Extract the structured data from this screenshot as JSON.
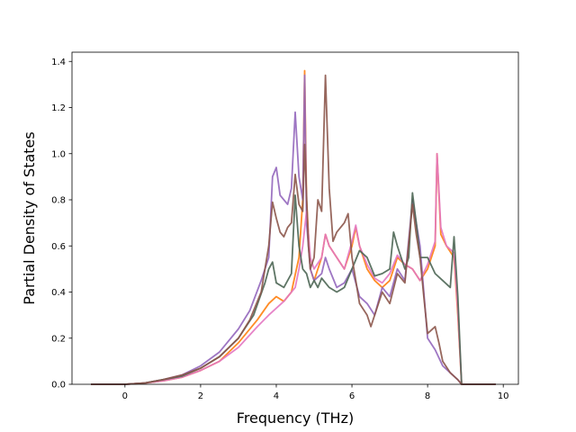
{
  "chart_data": {
    "type": "line",
    "title": "",
    "xlabel": "Frequency (THz)",
    "ylabel": "Partial Density of States",
    "xlim": [
      -1.4,
      10.4
    ],
    "ylim": [
      0.0,
      1.44
    ],
    "xticks": [
      0,
      2,
      4,
      6,
      8,
      10
    ],
    "yticks": [
      0.0,
      0.2,
      0.4,
      0.6,
      0.8,
      1.0,
      1.2,
      1.4
    ],
    "xtick_labels": [
      "0",
      "2",
      "4",
      "6",
      "8",
      "10"
    ],
    "ytick_labels": [
      "0.0",
      "0.2",
      "0.4",
      "0.6",
      "0.8",
      "1.0",
      "1.2",
      "1.4"
    ],
    "grid": false,
    "legend": "none",
    "series": [
      {
        "color": "#ff7f0e",
        "points": [
          [
            -0.9,
            0
          ],
          [
            0,
            0
          ],
          [
            0.5,
            0.005
          ],
          [
            1,
            0.015
          ],
          [
            1.5,
            0.03
          ],
          [
            2,
            0.06
          ],
          [
            2.5,
            0.1
          ],
          [
            3,
            0.18
          ],
          [
            3.5,
            0.28
          ],
          [
            3.8,
            0.35
          ],
          [
            4,
            0.38
          ],
          [
            4.2,
            0.36
          ],
          [
            4.4,
            0.4
          ],
          [
            4.6,
            0.55
          ],
          [
            4.7,
            0.8
          ],
          [
            4.75,
            1.36
          ],
          [
            4.8,
            0.8
          ],
          [
            4.9,
            0.5
          ],
          [
            5,
            0.45
          ],
          [
            5.2,
            0.55
          ],
          [
            5.3,
            0.65
          ],
          [
            5.4,
            0.6
          ],
          [
            5.6,
            0.55
          ],
          [
            5.8,
            0.5
          ],
          [
            6,
            0.6
          ],
          [
            6.1,
            0.68
          ],
          [
            6.2,
            0.6
          ],
          [
            6.4,
            0.5
          ],
          [
            6.6,
            0.45
          ],
          [
            6.8,
            0.42
          ],
          [
            7,
            0.45
          ],
          [
            7.2,
            0.55
          ],
          [
            7.4,
            0.52
          ],
          [
            7.6,
            0.5
          ],
          [
            7.8,
            0.45
          ],
          [
            8,
            0.5
          ],
          [
            8.2,
            0.6
          ],
          [
            8.25,
            1.0
          ],
          [
            8.35,
            0.65
          ],
          [
            8.5,
            0.6
          ],
          [
            8.7,
            0.55
          ],
          [
            8.8,
            0.3
          ],
          [
            8.9,
            0.0
          ],
          [
            9.8,
            0
          ]
        ]
      },
      {
        "color": "#9467bd",
        "points": [
          [
            -0.9,
            0
          ],
          [
            0,
            0
          ],
          [
            0.5,
            0.005
          ],
          [
            1,
            0.02
          ],
          [
            1.5,
            0.04
          ],
          [
            2,
            0.08
          ],
          [
            2.5,
            0.14
          ],
          [
            3,
            0.24
          ],
          [
            3.3,
            0.32
          ],
          [
            3.6,
            0.45
          ],
          [
            3.8,
            0.55
          ],
          [
            3.9,
            0.9
          ],
          [
            4,
            0.94
          ],
          [
            4.1,
            0.82
          ],
          [
            4.2,
            0.8
          ],
          [
            4.3,
            0.78
          ],
          [
            4.4,
            0.85
          ],
          [
            4.5,
            1.18
          ],
          [
            4.6,
            0.9
          ],
          [
            4.7,
            0.8
          ],
          [
            4.75,
            1.34
          ],
          [
            4.8,
            0.7
          ],
          [
            4.9,
            0.5
          ],
          [
            5,
            0.45
          ],
          [
            5.2,
            0.48
          ],
          [
            5.3,
            0.55
          ],
          [
            5.4,
            0.5
          ],
          [
            5.6,
            0.42
          ],
          [
            5.8,
            0.44
          ],
          [
            6,
            0.5
          ],
          [
            6.2,
            0.38
          ],
          [
            6.4,
            0.35
          ],
          [
            6.6,
            0.3
          ],
          [
            6.8,
            0.42
          ],
          [
            7,
            0.38
          ],
          [
            7.2,
            0.5
          ],
          [
            7.4,
            0.45
          ],
          [
            7.6,
            0.8
          ],
          [
            7.7,
            0.7
          ],
          [
            7.8,
            0.6
          ],
          [
            7.9,
            0.4
          ],
          [
            8,
            0.2
          ],
          [
            8.2,
            0.15
          ],
          [
            8.4,
            0.08
          ],
          [
            8.6,
            0.05
          ],
          [
            8.8,
            0.02
          ],
          [
            8.9,
            0.0
          ],
          [
            9.8,
            0
          ]
        ]
      },
      {
        "color": "#e377c2",
        "points": [
          [
            -0.9,
            0
          ],
          [
            0,
            0
          ],
          [
            0.5,
            0.005
          ],
          [
            1,
            0.015
          ],
          [
            1.5,
            0.03
          ],
          [
            2,
            0.06
          ],
          [
            2.5,
            0.1
          ],
          [
            3,
            0.16
          ],
          [
            3.5,
            0.25
          ],
          [
            3.8,
            0.3
          ],
          [
            4,
            0.33
          ],
          [
            4.2,
            0.36
          ],
          [
            4.4,
            0.4
          ],
          [
            4.5,
            0.42
          ],
          [
            4.6,
            0.5
          ],
          [
            4.7,
            0.6
          ],
          [
            4.8,
            0.75
          ],
          [
            4.9,
            0.55
          ],
          [
            5,
            0.5
          ],
          [
            5.2,
            0.55
          ],
          [
            5.3,
            0.65
          ],
          [
            5.4,
            0.6
          ],
          [
            5.6,
            0.55
          ],
          [
            5.8,
            0.5
          ],
          [
            6,
            0.62
          ],
          [
            6.1,
            0.69
          ],
          [
            6.2,
            0.6
          ],
          [
            6.4,
            0.52
          ],
          [
            6.6,
            0.46
          ],
          [
            6.8,
            0.44
          ],
          [
            7,
            0.48
          ],
          [
            7.2,
            0.56
          ],
          [
            7.4,
            0.52
          ],
          [
            7.6,
            0.5
          ],
          [
            7.8,
            0.45
          ],
          [
            8,
            0.52
          ],
          [
            8.2,
            0.62
          ],
          [
            8.25,
            1.0
          ],
          [
            8.35,
            0.68
          ],
          [
            8.5,
            0.6
          ],
          [
            8.7,
            0.57
          ],
          [
            8.8,
            0.32
          ],
          [
            8.9,
            0.0
          ],
          [
            9.8,
            0
          ]
        ]
      },
      {
        "color": "#4c6654",
        "points": [
          [
            -0.9,
            0
          ],
          [
            0,
            0
          ],
          [
            0.5,
            0.005
          ],
          [
            1,
            0.02
          ],
          [
            1.5,
            0.035
          ],
          [
            2,
            0.07
          ],
          [
            2.5,
            0.12
          ],
          [
            3,
            0.2
          ],
          [
            3.4,
            0.3
          ],
          [
            3.7,
            0.44
          ],
          [
            3.8,
            0.5
          ],
          [
            3.9,
            0.53
          ],
          [
            4,
            0.44
          ],
          [
            4.2,
            0.42
          ],
          [
            4.4,
            0.48
          ],
          [
            4.5,
            0.82
          ],
          [
            4.6,
            0.6
          ],
          [
            4.7,
            0.5
          ],
          [
            4.8,
            0.48
          ],
          [
            4.9,
            0.42
          ],
          [
            5,
            0.45
          ],
          [
            5.1,
            0.42
          ],
          [
            5.2,
            0.46
          ],
          [
            5.4,
            0.42
          ],
          [
            5.6,
            0.4
          ],
          [
            5.8,
            0.42
          ],
          [
            6,
            0.5
          ],
          [
            6.2,
            0.58
          ],
          [
            6.4,
            0.55
          ],
          [
            6.6,
            0.47
          ],
          [
            6.8,
            0.48
          ],
          [
            7,
            0.5
          ],
          [
            7.1,
            0.66
          ],
          [
            7.2,
            0.6
          ],
          [
            7.4,
            0.5
          ],
          [
            7.5,
            0.55
          ],
          [
            7.6,
            0.83
          ],
          [
            7.7,
            0.7
          ],
          [
            7.8,
            0.55
          ],
          [
            8,
            0.55
          ],
          [
            8.2,
            0.48
          ],
          [
            8.4,
            0.45
          ],
          [
            8.6,
            0.42
          ],
          [
            8.7,
            0.64
          ],
          [
            8.8,
            0.38
          ],
          [
            8.9,
            0.0
          ],
          [
            9.8,
            0
          ]
        ]
      },
      {
        "color": "#8c564b",
        "points": [
          [
            -0.9,
            0
          ],
          [
            0,
            0
          ],
          [
            0.5,
            0.005
          ],
          [
            1,
            0.02
          ],
          [
            1.5,
            0.04
          ],
          [
            2,
            0.07
          ],
          [
            2.5,
            0.12
          ],
          [
            3,
            0.2
          ],
          [
            3.3,
            0.28
          ],
          [
            3.6,
            0.4
          ],
          [
            3.8,
            0.6
          ],
          [
            3.9,
            0.79
          ],
          [
            4,
            0.72
          ],
          [
            4.1,
            0.66
          ],
          [
            4.2,
            0.64
          ],
          [
            4.3,
            0.68
          ],
          [
            4.4,
            0.7
          ],
          [
            4.5,
            0.91
          ],
          [
            4.6,
            0.78
          ],
          [
            4.7,
            0.75
          ],
          [
            4.75,
            1.04
          ],
          [
            4.85,
            0.6
          ],
          [
            4.9,
            0.5
          ],
          [
            5,
            0.55
          ],
          [
            5.1,
            0.8
          ],
          [
            5.2,
            0.75
          ],
          [
            5.3,
            1.34
          ],
          [
            5.4,
            0.85
          ],
          [
            5.5,
            0.62
          ],
          [
            5.6,
            0.66
          ],
          [
            5.8,
            0.7
          ],
          [
            5.9,
            0.74
          ],
          [
            6,
            0.55
          ],
          [
            6.1,
            0.45
          ],
          [
            6.2,
            0.35
          ],
          [
            6.4,
            0.3
          ],
          [
            6.5,
            0.25
          ],
          [
            6.6,
            0.3
          ],
          [
            6.8,
            0.4
          ],
          [
            7,
            0.35
          ],
          [
            7.2,
            0.48
          ],
          [
            7.4,
            0.44
          ],
          [
            7.6,
            0.78
          ],
          [
            7.7,
            0.65
          ],
          [
            7.8,
            0.55
          ],
          [
            7.9,
            0.38
          ],
          [
            8,
            0.22
          ],
          [
            8.2,
            0.25
          ],
          [
            8.3,
            0.18
          ],
          [
            8.4,
            0.1
          ],
          [
            8.6,
            0.05
          ],
          [
            8.8,
            0.02
          ],
          [
            8.9,
            0.0
          ],
          [
            9.8,
            0
          ]
        ]
      }
    ]
  }
}
